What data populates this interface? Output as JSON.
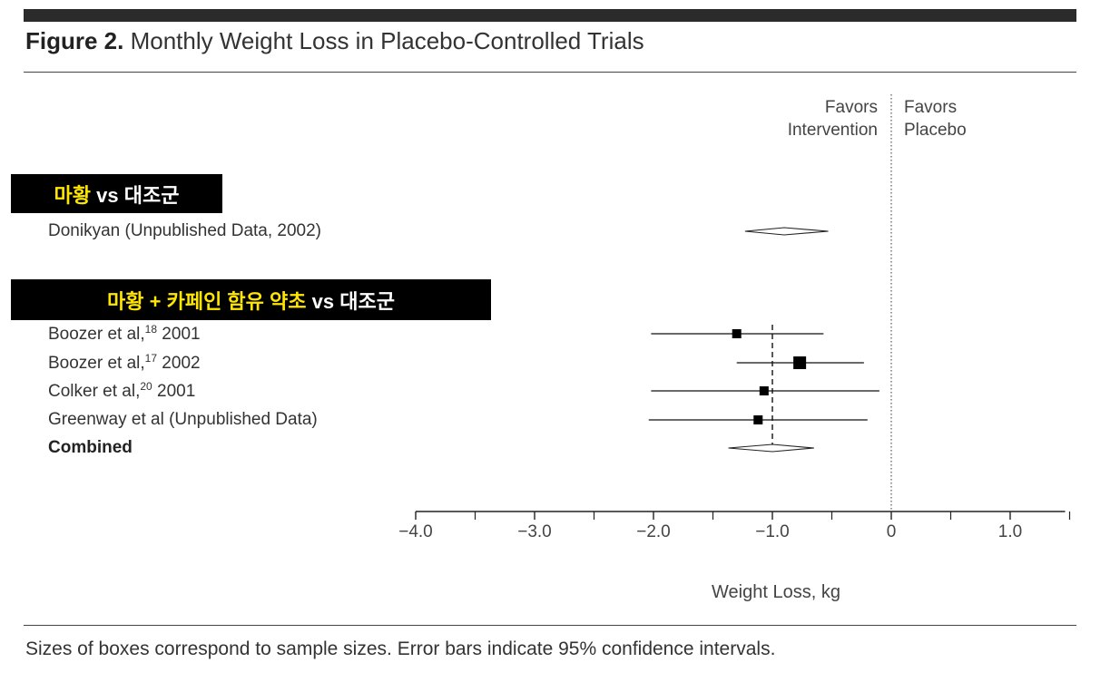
{
  "figure": {
    "label": "Figure 2.",
    "title": "Monthly Weight Loss in Placebo-Controlled Trials",
    "caption": "Sizes of boxes correspond to sample sizes. Error bars indicate 95% confidence intervals."
  },
  "groups": [
    {
      "pre": "",
      "hl": "마황",
      "post": " vs 대조군"
    },
    {
      "pre": "",
      "hl": "마황 + 카페인 함유 약초",
      "post": " vs 대조군"
    }
  ],
  "chart_data": {
    "type": "forest",
    "xlabel": "Weight Loss, kg",
    "xlim": [
      -4.0,
      1.5
    ],
    "ticks": [
      -4.0,
      -3.0,
      -2.0,
      -1.0,
      0,
      1.0
    ],
    "tick_labels": [
      "−4.0",
      "−3.0",
      "−2.0",
      "−1.0",
      "0",
      "1.0"
    ],
    "favors_left": [
      "Favors",
      "Intervention"
    ],
    "favors_right": [
      "Favors",
      "Placebo"
    ],
    "reference_line": 0,
    "combined_line": -1.0,
    "studies": [
      {
        "name": "Donikyan (Unpublished Data, 2002)",
        "sup": "",
        "year": "",
        "group": 0,
        "kind": "diamond",
        "estimate": -0.9,
        "ci": [
          -1.23,
          -0.53
        ]
      },
      {
        "name": "Boozer et al,",
        "sup": "18",
        "year": " 2001",
        "group": 1,
        "kind": "box",
        "estimate": -1.3,
        "ci": [
          -2.02,
          -0.57
        ],
        "weight": 1
      },
      {
        "name": "Boozer et al,",
        "sup": "17",
        "year": " 2002",
        "group": 1,
        "kind": "box",
        "estimate": -0.77,
        "ci": [
          -1.3,
          -0.23
        ],
        "weight": 2
      },
      {
        "name": "Colker et al,",
        "sup": "20",
        "year": " 2001",
        "group": 1,
        "kind": "box",
        "estimate": -1.07,
        "ci": [
          -2.02,
          -0.1
        ],
        "weight": 1
      },
      {
        "name": "Greenway et al (Unpublished Data)",
        "sup": "",
        "year": "",
        "group": 1,
        "kind": "box",
        "estimate": -1.12,
        "ci": [
          -2.04,
          -0.2
        ],
        "weight": 1
      },
      {
        "name": "Combined",
        "sup": "",
        "year": "",
        "group": 1,
        "kind": "diamond",
        "estimate": -1.0,
        "ci": [
          -1.37,
          -0.65
        ],
        "bold": true
      }
    ]
  }
}
